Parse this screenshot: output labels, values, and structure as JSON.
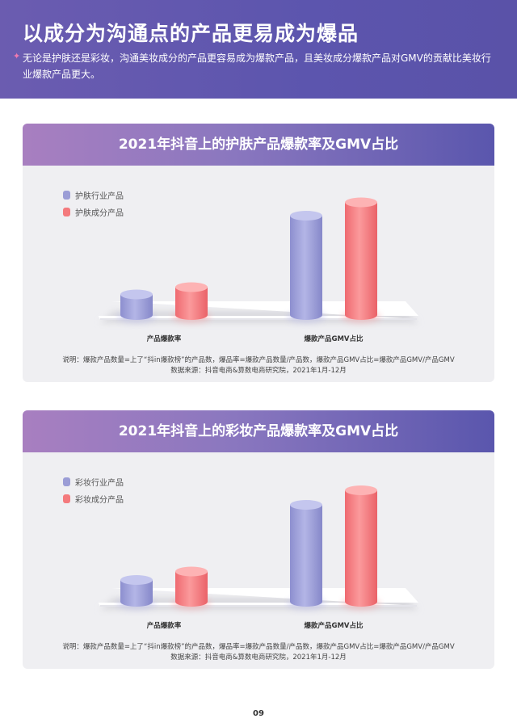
{
  "header": {
    "title": "以成分为沟通点的产品更易成为爆品",
    "subtitle": "无论是护肤还是彩妆，沟通美妆成分的产品更容易成为爆款产品，且美妆成分爆款产品对GMV的贡献比美妆行业爆款产品更大。"
  },
  "colors": {
    "series_a": "#9b9dd6",
    "series_b": "#f47a7d",
    "header": "#5c55ae"
  },
  "chart_data": [
    {
      "type": "bar",
      "title": "2021年抖音上的护肤产品爆款率及GMV占比",
      "categories": [
        "产品爆款率",
        "爆款产品GMV占比"
      ],
      "series": [
        {
          "name": "护肤行业产品",
          "values": [
            0.17,
            0.82
          ]
        },
        {
          "name": "护肤成分产品",
          "values": [
            0.23,
            0.93
          ]
        }
      ],
      "ylim": [
        0,
        1
      ],
      "legend": "top-left",
      "grid": false,
      "note_lines": [
        "说明：爆款产品数量=上了“抖in爆款榜”的产品数，爆品率=爆款产品数量/产品数，爆款产品GMV占比=爆款产品GMV/产品GMV",
        "数据来源：抖音电商&算数电商研究院，2021年1月-12月"
      ]
    },
    {
      "type": "bar",
      "title": "2021年抖音上的彩妆产品爆款率及GMV占比",
      "categories": [
        "产品爆款率",
        "爆款产品GMV占比"
      ],
      "series": [
        {
          "name": "彩妆行业产品",
          "values": [
            0.18,
            0.8
          ]
        },
        {
          "name": "彩妆成分产品",
          "values": [
            0.25,
            0.92
          ]
        }
      ],
      "ylim": [
        0,
        1
      ],
      "legend": "top-left",
      "grid": false,
      "note_lines": [
        "说明：爆款产品数量=上了“抖in爆款榜”的产品数，爆品率=爆款产品数量/产品数，爆款产品GMV占比=爆款产品GMV/产品GMV",
        "数据来源：抖音电商&算数电商研究院，2021年1月-12月"
      ]
    }
  ],
  "page_number": "09"
}
